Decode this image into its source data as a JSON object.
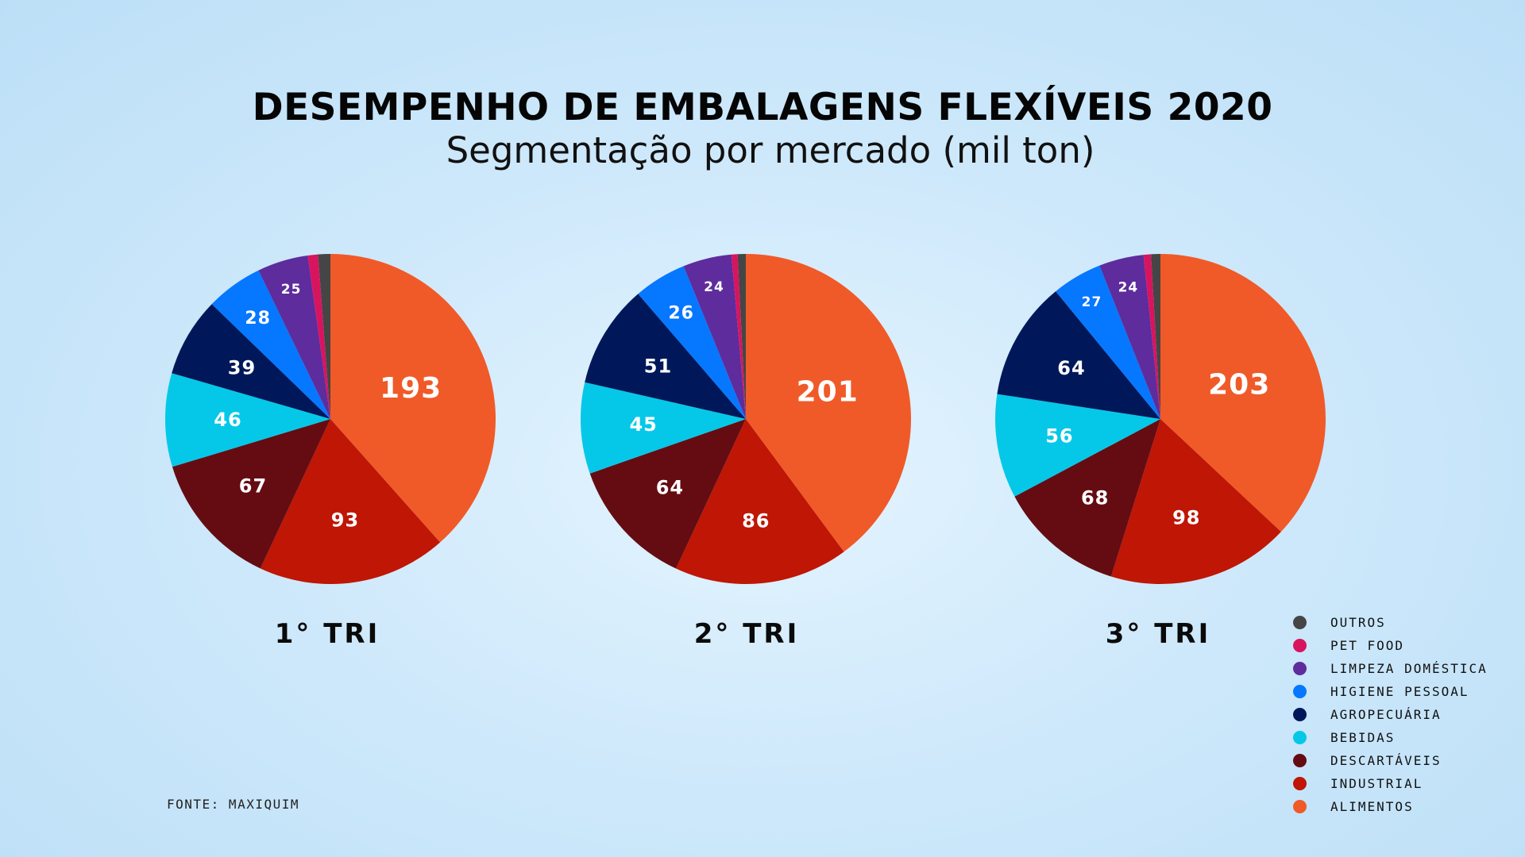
{
  "title": "DESEMPENHO DE EMBALAGENS FLEXÍVEIS 2020",
  "subtitle": "Segmentação por mercado (mil ton)",
  "source": "FONTE: MAXIQUIM",
  "chart_data": {
    "type": "pie",
    "unit": "mil ton",
    "categories": [
      "ALIMENTOS",
      "INDUSTRIAL",
      "DESCARTÁVEIS",
      "BEBIDAS",
      "AGROPECUÁRIA",
      "HIGIENE PESSOAL",
      "LIMPEZA DOMÉSTICA",
      "PET FOOD",
      "OUTROS"
    ],
    "colors": [
      "#f05a28",
      "#bf1605",
      "#650c12",
      "#05c8e8",
      "#00185a",
      "#0677ff",
      "#5e2c9c",
      "#d8145f",
      "#454545"
    ],
    "series": [
      {
        "name": "1° TRI",
        "values": [
          193,
          93,
          67,
          46,
          39,
          28,
          25,
          5,
          6
        ],
        "labels": [
          "193",
          "93",
          "67",
          "46",
          "39",
          "28",
          "25",
          "",
          ""
        ]
      },
      {
        "name": "2° TRI",
        "values": [
          201,
          86,
          64,
          45,
          51,
          26,
          24,
          3,
          4
        ],
        "labels": [
          "201",
          "86",
          "64",
          "45",
          "51",
          "26",
          "24",
          "",
          ""
        ]
      },
      {
        "name": "3° TRI",
        "values": [
          203,
          98,
          68,
          56,
          64,
          27,
          24,
          4,
          5
        ],
        "labels": [
          "203",
          "98",
          "68",
          "56",
          "64",
          "27",
          "24",
          "",
          ""
        ]
      }
    ],
    "legend": {
      "position": "bottom-right",
      "items": [
        {
          "label": "OUTROS",
          "color": "#454545"
        },
        {
          "label": "PET FOOD",
          "color": "#d8145f"
        },
        {
          "label": "LIMPEZA DOMÉSTICA",
          "color": "#5e2c9c"
        },
        {
          "label": "HIGIENE PESSOAL",
          "color": "#0677ff"
        },
        {
          "label": "AGROPECUÁRIA",
          "color": "#00185a"
        },
        {
          "label": "BEBIDAS",
          "color": "#05c8e8"
        },
        {
          "label": "DESCARTÁVEIS",
          "color": "#650c12"
        },
        {
          "label": "INDUSTRIAL",
          "color": "#bf1605"
        },
        {
          "label": "ALIMENTOS",
          "color": "#f05a28"
        }
      ]
    }
  }
}
